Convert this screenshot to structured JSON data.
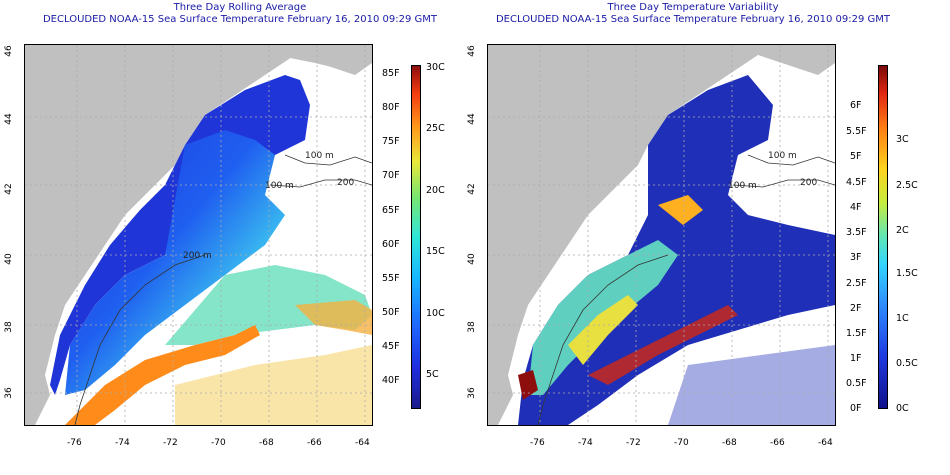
{
  "left_panel": {
    "title_line1": "Three Day Rolling Average",
    "title_line2": "DECLOUDED NOAA-15 Sea Surface Temperature February 16, 2010 09:29 GMT",
    "x_ticks": [
      "-76",
      "-74",
      "-72",
      "-70",
      "-68",
      "-66",
      "-64"
    ],
    "y_ticks": [
      "46",
      "44",
      "42",
      "40",
      "38",
      "36"
    ],
    "contour_labels": [
      "100 m",
      "100 m",
      "200",
      "200 m",
      "100",
      "200"
    ],
    "colorbar_f": [
      "85F",
      "80F",
      "75F",
      "70F",
      "65F",
      "60F",
      "55F",
      "50F",
      "45F",
      "40F"
    ],
    "colorbar_c": [
      "30C",
      "25C",
      "20C",
      "15C",
      "10C",
      "5C"
    ]
  },
  "right_panel": {
    "title_line1": "Three Day Temperature Variability",
    "title_line2": "DECLOUDED NOAA-15 Sea Surface Temperature February 16, 2010 09:29 GMT",
    "x_ticks": [
      "-76",
      "-74",
      "-72",
      "-70",
      "-68",
      "-66",
      "-64"
    ],
    "y_ticks": [
      "46",
      "44",
      "42",
      "40",
      "38",
      "36"
    ],
    "contour_labels": [
      "100 m",
      "100 m",
      "200"
    ],
    "colorbar_f": [
      "6F",
      "5.5F",
      "5F",
      "4.5F",
      "4F",
      "3.5F",
      "3F",
      "2.5F",
      "2F",
      "1.5F",
      "1F",
      "0.5F",
      "0F"
    ],
    "colorbar_c": [
      "3C",
      "2.5C",
      "2C",
      "1.5C",
      "1C",
      "0.5C",
      "0C"
    ]
  },
  "colors": {
    "land": "#c0c0c0",
    "title": "#1a1aa6",
    "cold": "#1f2fe0",
    "warm": "#ff8c1a"
  }
}
